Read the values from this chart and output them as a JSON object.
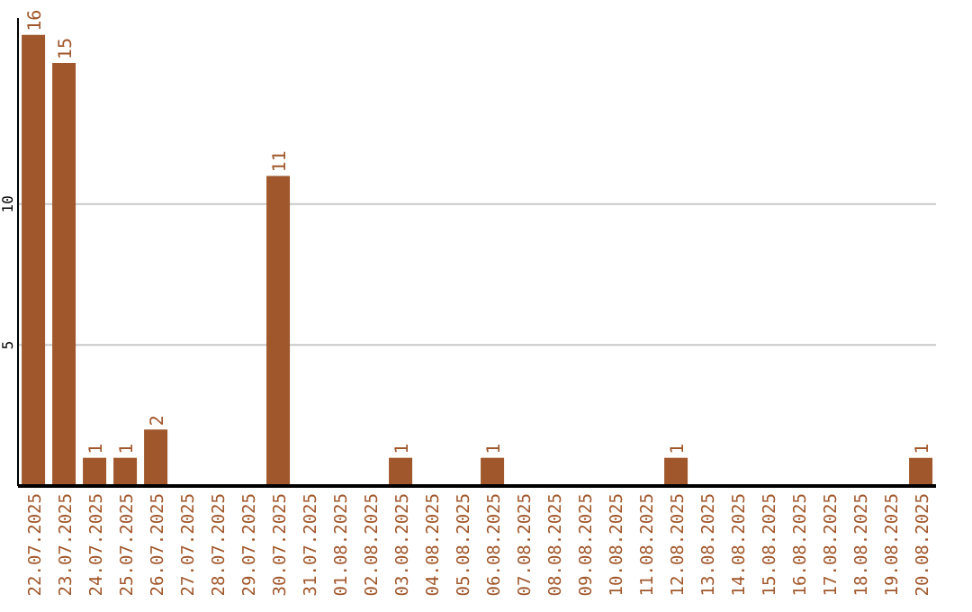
{
  "chart_data": {
    "type": "bar",
    "categories": [
      "22.07.2025",
      "23.07.2025",
      "24.07.2025",
      "25.07.2025",
      "26.07.2025",
      "27.07.2025",
      "28.07.2025",
      "29.07.2025",
      "30.07.2025",
      "31.07.2025",
      "01.08.2025",
      "02.08.2025",
      "03.08.2025",
      "04.08.2025",
      "05.08.2025",
      "06.08.2025",
      "07.08.2025",
      "08.08.2025",
      "09.08.2025",
      "10.08.2025",
      "11.08.2025",
      "12.08.2025",
      "13.08.2025",
      "14.08.2025",
      "15.08.2025",
      "16.08.2025",
      "17.08.2025",
      "18.08.2025",
      "19.08.2025",
      "20.08.2025"
    ],
    "values": [
      16,
      15,
      1,
      1,
      2,
      0,
      0,
      0,
      11,
      0,
      0,
      0,
      1,
      0,
      0,
      1,
      0,
      0,
      0,
      0,
      0,
      1,
      0,
      0,
      0,
      0,
      0,
      0,
      0,
      1
    ],
    "value_labels": [
      "16",
      "15",
      "1",
      "1",
      "2",
      null,
      null,
      null,
      "11",
      null,
      null,
      null,
      "1",
      null,
      null,
      "1",
      null,
      null,
      null,
      null,
      null,
      "1",
      null,
      null,
      null,
      null,
      null,
      null,
      null,
      "1"
    ],
    "color": "#a0572b",
    "ylim": [
      0,
      16.6
    ],
    "yticks": [
      5,
      10
    ],
    "grid": "y"
  }
}
